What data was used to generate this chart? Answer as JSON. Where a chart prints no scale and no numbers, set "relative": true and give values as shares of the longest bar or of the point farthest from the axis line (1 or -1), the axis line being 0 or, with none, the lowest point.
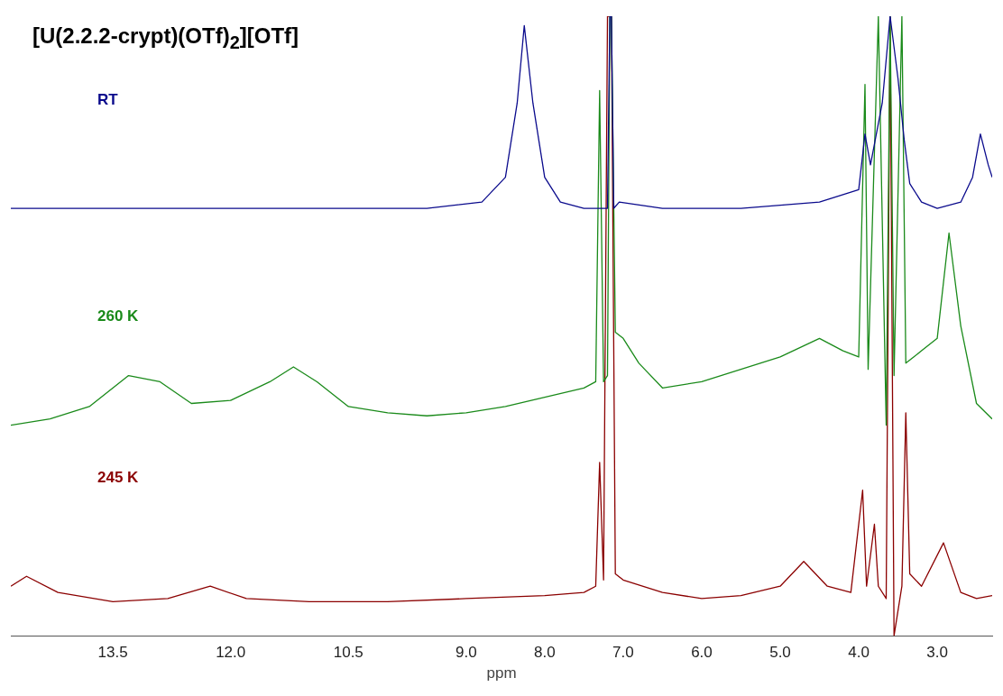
{
  "chart_data": {
    "type": "line",
    "title": "[U(2.2.2-crypt)(OTf)$_{2}$][OTf]",
    "xlabel": "ppm",
    "relative": true,
    "grid": false,
    "legend": false,
    "marker": "none",
    "line_style": "solid",
    "xlim": [
      14.8,
      2.3
    ],
    "xticks": [
      {
        "value": 13.5,
        "label": "13.5"
      },
      {
        "value": 12,
        "label": "12.0"
      },
      {
        "value": 10.5,
        "label": "10.5"
      },
      {
        "value": 9,
        "label": "9.0"
      },
      {
        "value": 8,
        "label": "8.0"
      },
      {
        "value": 7,
        "label": "7.0"
      },
      {
        "value": 6,
        "label": "6.0"
      },
      {
        "value": 5,
        "label": "5.0"
      },
      {
        "value": 4,
        "label": "4.0"
      },
      {
        "value": 3,
        "label": "3.0"
      }
    ],
    "series": [
      {
        "name": "RT",
        "color": "#0a0a8c",
        "x": [
          14.8,
          13.5,
          12,
          10.5,
          9.5,
          8.8,
          8.5,
          8.35,
          8.26,
          8.15,
          8.0,
          7.8,
          7.5,
          7.3,
          7.2,
          7.17,
          7.15,
          7.12,
          7.05,
          6.5,
          5.5,
          4.5,
          4.0,
          3.92,
          3.85,
          3.7,
          3.6,
          3.5,
          3.42,
          3.35,
          3.2,
          3.0,
          2.7,
          2.55,
          2.45,
          2.35,
          2.3
        ],
        "values": [
          0.69,
          0.69,
          0.69,
          0.69,
          0.69,
          0.7,
          0.74,
          0.86,
          0.985,
          0.86,
          0.74,
          0.7,
          0.69,
          0.69,
          0.69,
          1.0,
          1.0,
          0.69,
          0.7,
          0.69,
          0.69,
          0.7,
          0.72,
          0.81,
          0.76,
          0.86,
          1.0,
          0.9,
          0.8,
          0.73,
          0.7,
          0.69,
          0.7,
          0.74,
          0.81,
          0.76,
          0.74
        ]
      },
      {
        "name": "260 K",
        "color": "#1a8a1a",
        "x": [
          14.8,
          14.3,
          13.8,
          13.3,
          12.9,
          12.5,
          12.0,
          11.5,
          11.2,
          10.9,
          10.5,
          10.0,
          9.5,
          9.0,
          8.5,
          8.0,
          7.5,
          7.35,
          7.3,
          7.25,
          7.2,
          7.17,
          7.15,
          7.1,
          7.0,
          6.8,
          6.5,
          6.0,
          5.5,
          5.0,
          4.5,
          4.2,
          4.0,
          3.92,
          3.88,
          3.75,
          3.65,
          3.6,
          3.55,
          3.45,
          3.4,
          3.3,
          3.2,
          3.0,
          2.85,
          2.7,
          2.5,
          2.3
        ],
        "values": [
          0.34,
          0.35,
          0.37,
          0.42,
          0.41,
          0.375,
          0.38,
          0.41,
          0.434,
          0.41,
          0.37,
          0.36,
          0.355,
          0.36,
          0.37,
          0.385,
          0.4,
          0.41,
          0.88,
          0.41,
          0.42,
          1.0,
          1.0,
          0.49,
          0.48,
          0.44,
          0.4,
          0.41,
          0.43,
          0.45,
          0.48,
          0.46,
          0.45,
          0.89,
          0.43,
          1.0,
          0.34,
          1.0,
          0.42,
          1.0,
          0.44,
          0.45,
          0.46,
          0.48,
          0.65,
          0.5,
          0.375,
          0.35
        ]
      },
      {
        "name": "245 K",
        "color": "#8b0000",
        "x": [
          14.8,
          14.6,
          14.2,
          13.5,
          12.8,
          12.26,
          11.8,
          11.0,
          10.0,
          9.0,
          8.0,
          7.5,
          7.35,
          7.3,
          7.25,
          7.2,
          7.17,
          7.15,
          7.1,
          7.0,
          6.5,
          6.0,
          5.5,
          5.0,
          4.7,
          4.4,
          4.1,
          3.95,
          3.9,
          3.8,
          3.75,
          3.65,
          3.6,
          3.55,
          3.45,
          3.4,
          3.35,
          3.2,
          2.92,
          2.7,
          2.5,
          2.3
        ],
        "values": [
          0.08,
          0.096,
          0.07,
          0.055,
          0.06,
          0.08,
          0.06,
          0.055,
          0.055,
          0.06,
          0.065,
          0.07,
          0.08,
          0.28,
          0.09,
          1.0,
          1.0,
          1.0,
          0.1,
          0.09,
          0.07,
          0.06,
          0.065,
          0.08,
          0.12,
          0.08,
          0.07,
          0.235,
          0.08,
          0.18,
          0.08,
          0.06,
          1.0,
          0.0,
          0.08,
          0.36,
          0.1,
          0.08,
          0.15,
          0.07,
          0.06,
          0.065
        ]
      }
    ]
  }
}
